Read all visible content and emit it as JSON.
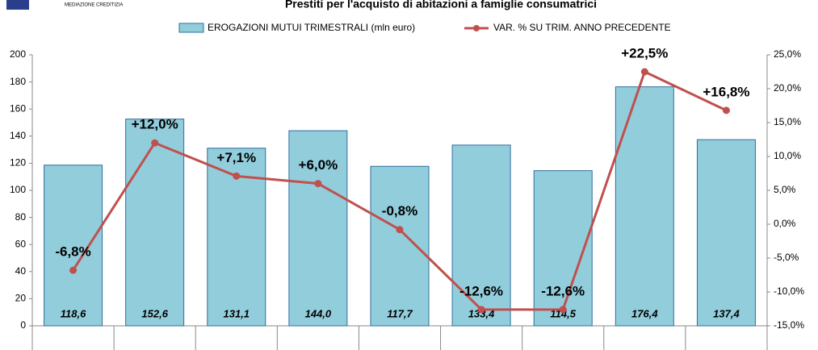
{
  "header": {
    "logo_text": "MEDIAZIONE CREDITIZIA"
  },
  "chart_data": {
    "type": "bar_line",
    "title": "Prestiti per l'acquisto di abitazioni a famiglie consumatrici",
    "categories": [
      null,
      null,
      null,
      null,
      null,
      null,
      null,
      null,
      null
    ],
    "series": [
      {
        "name": "EROGAZIONI MUTUI TRIMESTRALI (mln euro)",
        "type": "bar",
        "color": "#92cddc",
        "values": [
          118.6,
          152.6,
          131.1,
          144.0,
          117.7,
          133.4,
          114.5,
          176.4,
          137.4
        ],
        "value_labels": [
          "118,6",
          "152,6",
          "131,1",
          "144,0",
          "117,7",
          "133,4",
          "114,5",
          "176,4",
          "137,4"
        ]
      },
      {
        "name": "VAR. % SU TRIM. ANNO PRECEDENTE",
        "type": "line",
        "axis": "y2",
        "color": "#c0504d",
        "values": [
          -6.8,
          12.0,
          7.1,
          6.0,
          -0.8,
          -12.6,
          -12.6,
          22.5,
          16.8
        ],
        "value_labels": [
          "-6,8%",
          "+12,0%",
          "+7,1%",
          "+6,0%",
          "-0,8%",
          "-12,6%",
          "-12,6%",
          "+22,5%",
          "+16,8%"
        ]
      }
    ],
    "ylim": [
      0,
      200
    ],
    "yticks": [
      0,
      20,
      40,
      60,
      80,
      100,
      120,
      140,
      160,
      180,
      200
    ],
    "y2lim": [
      -15,
      25
    ],
    "y2ticks": [
      {
        "value": -15,
        "label": "-15,0%"
      },
      {
        "value": -10,
        "label": "-10,0%"
      },
      {
        "value": -5,
        "label": "-5,0%"
      },
      {
        "value": 0,
        "label": "0,0%"
      },
      {
        "value": 5,
        "label": "5,0%"
      },
      {
        "value": 10,
        "label": "10,0%"
      },
      {
        "value": 15,
        "label": "15,0%"
      },
      {
        "value": 20,
        "label": "20,0%"
      },
      {
        "value": 25,
        "label": "25,0%"
      }
    ],
    "legend": "top"
  }
}
